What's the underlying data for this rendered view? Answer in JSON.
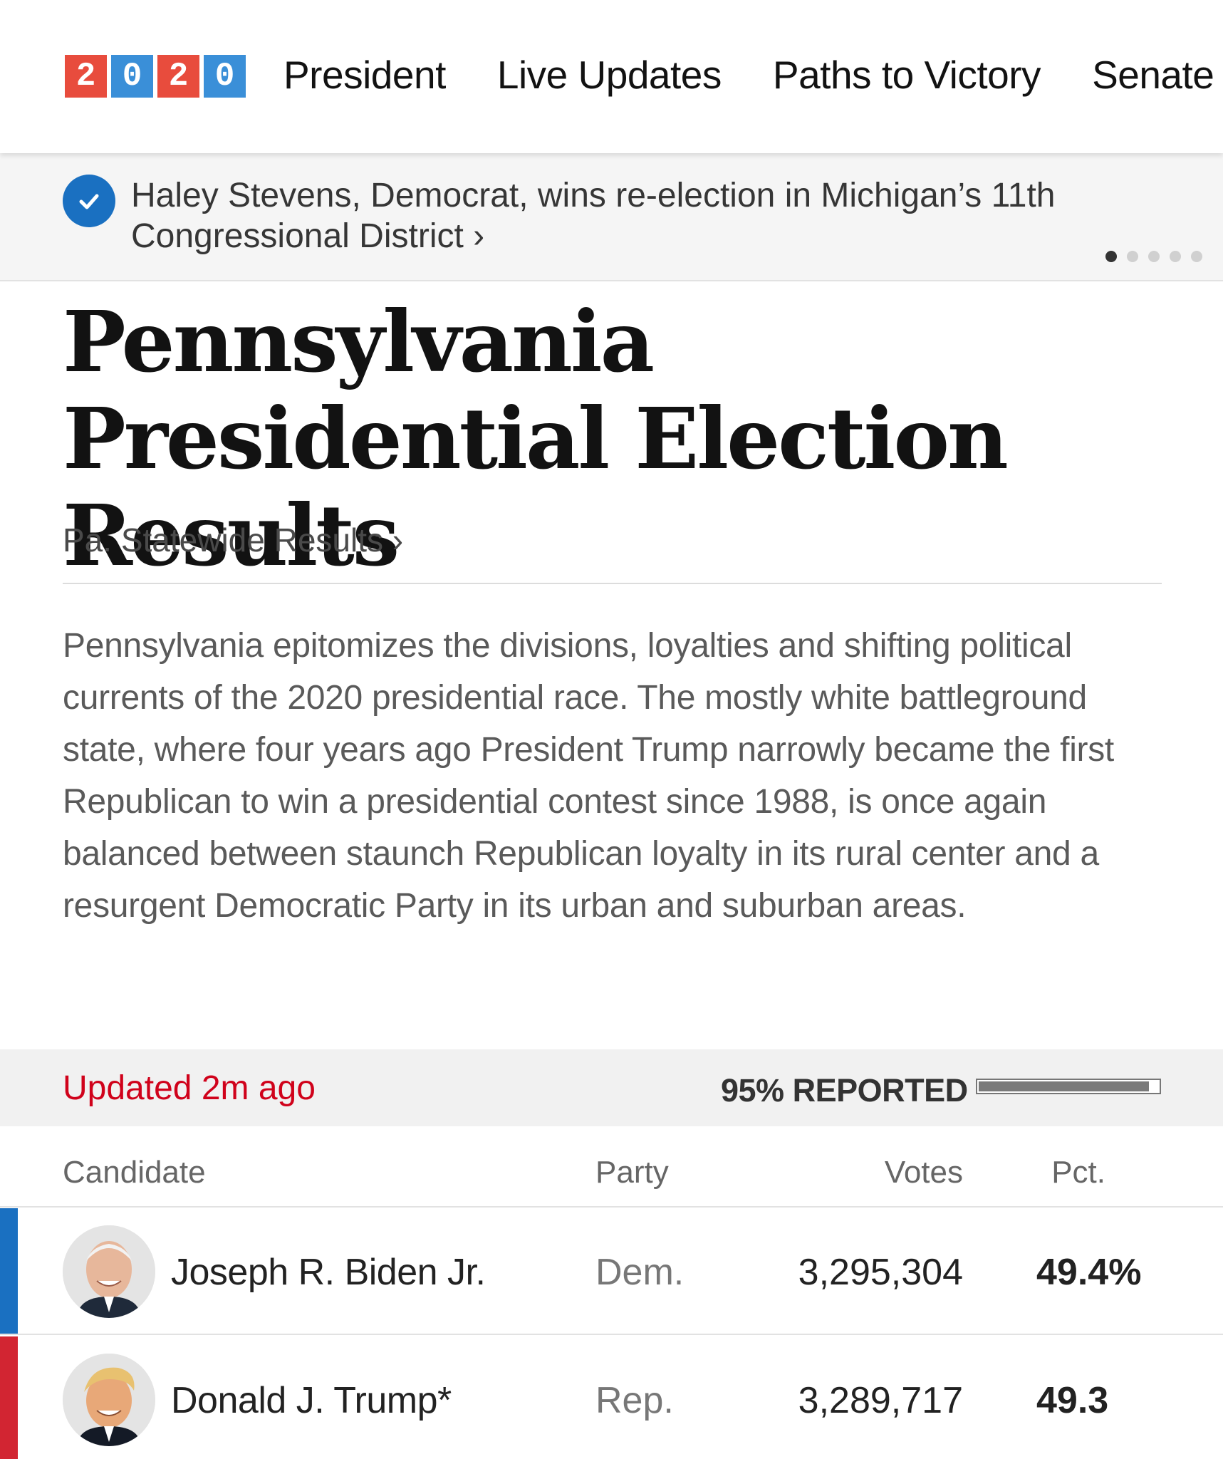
{
  "nav": {
    "logo_digits": [
      "2",
      "0",
      "2",
      "0"
    ],
    "logo_colors": [
      "#e84c3d",
      "#3a8fd8",
      "#e84c3d",
      "#3a8fd8"
    ],
    "links": [
      "President",
      "Live Updates",
      "Paths to Victory",
      "Senate"
    ]
  },
  "alert": {
    "text": "Haley Stevens, Democrat, wins re-election in Michigan’s 11th Congressional District ›",
    "icon": "check-circle-icon",
    "pager_count": 5,
    "pager_active": 0
  },
  "article": {
    "headline": "Pennsylvania Presidential Election Results",
    "statewide_link": "Pa. Statewide Results ›",
    "intro": "Pennsylvania epitomizes the divisions, loyalties and shifting political currents of the 2020 presidential race. The mostly white battleground state, where four years ago President Trump narrowly became the first Republican to win a presidential contest since 1988, is once again balanced between staunch Republican loyalty in its rural center and a resurgent Democratic Party in its urban and suburban areas."
  },
  "results": {
    "updated": "Updated 2m ago",
    "reported_label": "95% REPORTED",
    "reported_fraction": 0.95,
    "columns": {
      "candidate": "Candidate",
      "party": "Party",
      "votes": "Votes",
      "pct": "Pct."
    },
    "rows": [
      {
        "name": "Joseph R. Biden Jr.",
        "party": "Dem.",
        "votes": "3,295,304",
        "pct": "49.4%",
        "color": "#1a70c1"
      },
      {
        "name": "Donald J. Trump*",
        "party": "Rep.",
        "votes": "3,289,717",
        "pct": "49.3",
        "color": "#d22532"
      }
    ]
  }
}
